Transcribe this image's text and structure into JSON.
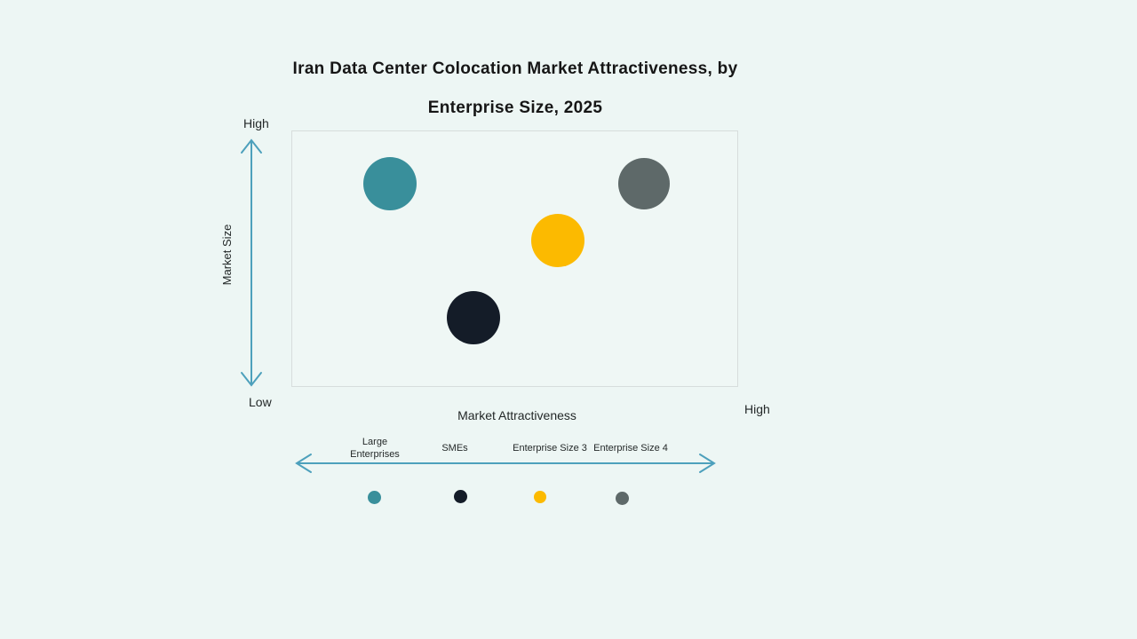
{
  "chart": {
    "title_line1": "Iran Data Center Colocation Market Attractiveness, by",
    "title_line2": "Enterprise Size, 2025",
    "y_axis": {
      "label": "Market Size",
      "top_label": "High",
      "bottom_label": "Low"
    },
    "x_axis": {
      "label": "Market Attractiveness",
      "right_label": "High"
    }
  },
  "chart_data": {
    "type": "scatter",
    "subtype": "bubble",
    "title": "Iran Data Center Colocation Market Attractiveness, by Enterprise Size, 2025",
    "xlabel": "Market Attractiveness",
    "ylabel": "Market Size",
    "x_axis_range_labels": [
      "",
      "High"
    ],
    "y_axis_range_labels": [
      "Low",
      "High"
    ],
    "grid": false,
    "legend_position": "bottom",
    "bubbles": [
      {
        "name": "Large Enterprises",
        "color": "#398f9b",
        "x": 0.219,
        "y": 0.796,
        "diameter": 60,
        "x_qualitative": "low-mid attractiveness",
        "y_qualitative": "high market size"
      },
      {
        "name": "SMEs",
        "color": "#141c28",
        "x": 0.406,
        "y": 0.273,
        "diameter": 60,
        "x_qualitative": "mid attractiveness",
        "y_qualitative": "low market size"
      },
      {
        "name": "Enterprise Size 3",
        "color": "#fcba00",
        "x": 0.594,
        "y": 0.574,
        "diameter": 60,
        "x_qualitative": "mid-high attractiveness",
        "y_qualitative": "mid market size"
      },
      {
        "name": "Enterprise Size 4",
        "color": "#5e6969",
        "x": 0.787,
        "y": 0.796,
        "diameter": 58,
        "x_qualitative": "high attractiveness",
        "y_qualitative": "high market size"
      }
    ]
  },
  "legend": {
    "items": [
      {
        "label": "Large Enterprises",
        "color": "#398f9b"
      },
      {
        "label": "SMEs",
        "color": "#141c28"
      },
      {
        "label": "Enterprise Size 3",
        "color": "#fcba00"
      },
      {
        "label": "Enterprise Size 4",
        "color": "#5e6969"
      }
    ]
  },
  "colors": {
    "background": "#edf6f4",
    "arrow": "#4da0bc",
    "plot_border": "#d7dddc",
    "title_text": "#161616"
  }
}
